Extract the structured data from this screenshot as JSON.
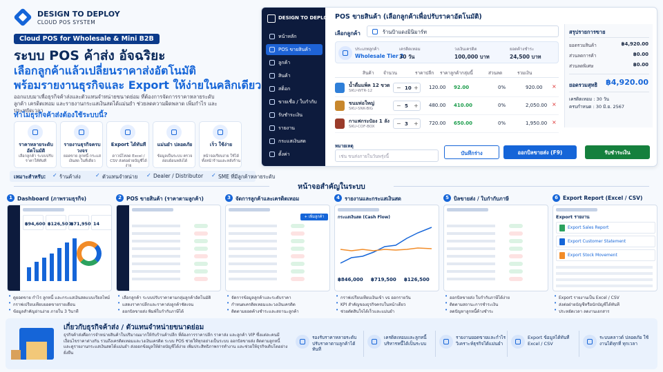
{
  "brand": {
    "name": "DESIGN TO DEPLOY",
    "tagline": "CLOUD POS SYSTEM"
  },
  "hero": {
    "badge": "Cloud POS for Wholesale & Mini B2B",
    "title_1": "ระบบ POS ค้าส่ง อัจฉริยะ",
    "title_2": "เลือกลูกค้าแล้วเปลี่ยนราคาส่งอัตโนมัติ",
    "title_3": "พร้อมรายงานธุรกิจและ Export ให้ง่ายในคลิกเดียว",
    "description": "ออกแบบมาเพื่อธุรกิจค้าส่งและตัวแทนจำหน่ายขนาดย่อม ที่ต้องการจัดการราคาหลายระดับ ลูกค้า เครดิตเทอม และรายงานกระแสเงินสดได้แม่นยำ ช่วยลดความผิดพลาด เพิ่มกำไร และประหยัดเวลา"
  },
  "why": {
    "heading": "ทำไมธุรกิจค้าส่งต้องใช้ระบบนี้?",
    "cards": [
      {
        "title": "ราคาหลายระดับ อัตโนมัติ",
        "text": "เลือกลูกค้า ระบบปรับราคาให้ทันที"
      },
      {
        "title": "รายงานธุรกิจครบวงจร",
        "text": "ยอดขาย ลูกหนี้ กระแสเงินสด ในที่เดียว"
      },
      {
        "title": "Export ได้ทันที",
        "text": "ดาวน์โหลด Excel / CSV ส่งต่อฝ่ายบัญชีได้ง่าย"
      },
      {
        "title": "แม่นยำ ปลอดภัย",
        "text": "ข้อมูลเป็นระบบ ตรวจสอบย้อนหลังได้"
      },
      {
        "title": "เร็ว ใช้ง่าย",
        "text": "หน้าจอเรียบง่าย ใช้ได้ทั้งหน้าร้านและหลังร้าน"
      }
    ]
  },
  "suitable": {
    "label": "เหมาะสำหรับ:",
    "items": [
      "ร้านค้าส่ง",
      "ตัวแทนจำหน่าย",
      "Dealer / Distributor",
      "SME ที่มีลูกค้าหลายระดับ"
    ]
  },
  "pos": {
    "menu": [
      "หน้าหลัก",
      "POS ขายสินค้า",
      "ลูกค้า",
      "สินค้า",
      "สต็อก",
      "ขายเชื่อ / ใบกำกับ",
      "รับชำระเงิน",
      "รายงาน",
      "กระแสเงินสด",
      "ตั้งค่า"
    ],
    "title": "POS ขายสินค้า (เลือกลูกค้าเพื่อปรับราคาอัตโนมัติ)",
    "customer_label": "เลือกลูกค้า",
    "customer": "ร้านป้าแดงมินิมาร์ท",
    "info": [
      {
        "label": "ประเภทลูกค้า",
        "value": "Wholesale Tier 2"
      },
      {
        "label": "เครดิตเทอม",
        "value": "30 วัน"
      },
      {
        "label": "วงเงินเครดิต",
        "value": "100,000 บาท"
      },
      {
        "label": "ยอดค้างชำระ",
        "value": "24,500 บาท"
      }
    ],
    "table": {
      "headers": [
        "สินค้า",
        "จำนวน",
        "ราคาปลีก",
        "ราคาลูกค้ากลุ่มนี้",
        "ส่วนลด",
        "รวมเงิน"
      ],
      "rows": [
        {
          "name": "น้ำดื่มแพ็ค 12 ขวด",
          "sku": "SKU-WTR-12",
          "qty": "10",
          "retail": "120.00",
          "price": "92.00",
          "discount": "0%",
          "total": "920.00"
        },
        {
          "name": "ขนมห่อใหญ่",
          "sku": "SKU-SNK-BIG",
          "qty": "5",
          "retail": "480.00",
          "price": "410.00",
          "discount": "0%",
          "total": "2,050.00"
        },
        {
          "name": "กาแฟกระป๋อง 1 ลัง",
          "sku": "SKU-COF-BOX",
          "qty": "3",
          "retail": "720.00",
          "price": "650.00",
          "discount": "0%",
          "total": "1,950.00"
        }
      ]
    },
    "note_label": "หมายเหตุ",
    "note_placeholder": "เช่น ขนส่งภายในวันพรุ่งนี้",
    "buttons": {
      "draft": "บันทึกร่าง",
      "issue": "ออกบิลขายส่ง (F9)",
      "pay": "รับชำระเงิน"
    },
    "summary": {
      "title": "สรุปรายการขาย",
      "lines": [
        {
          "label": "ยอดรวมสินค้า",
          "value": "฿4,920.00"
        },
        {
          "label": "ส่วนลดการค้า",
          "value": "฿0.00"
        },
        {
          "label": "ส่วนลดพิเศษ",
          "value": "฿0.00"
        }
      ],
      "total_label": "ยอดรวมสุทธิ",
      "total": "฿4,920.00",
      "credit": "เครดิตเทอม : 30 วัน",
      "due": "ครบกำหนด : 30 มิ.ย. 2567"
    }
  },
  "screens": {
    "heading": "หน้าจอสำคัญในระบบ",
    "items": [
      {
        "number": "1",
        "title": "Dashboard (ภาพรวมธุรกิจ)",
        "bullets": [
          "ดูยอดขาย กำไร ลูกหนี้ และกระแสเงินสดแบบเรียลไทม์",
          "กราฟเปรียบเทียบยอดขายรายเดือน",
          "ข้อมูลสำคัญอ่านง่าย ภายใน 3 วินาที"
        ]
      },
      {
        "number": "2",
        "title": "POS ขายสินค้า (ราคาตามลูกค้า)",
        "bullets": [
          "เลือกลูกค้า ระบบปรับราคาตามกลุ่มลูกค้าอัตโนมัติ",
          "แสดงราคาปลีกและราคาส่งลูกค้าชัดเจน",
          "ออกบิลขายส่ง พิมพ์ใบกำกับภาษีได้"
        ]
      },
      {
        "number": "3",
        "title": "จัดการลูกค้าและเครดิตเทอม",
        "bullets": [
          "จัดการข้อมูลลูกค้าและระดับราคา",
          "กำหนดเครดิตเทอมและวงเงินเครดิต",
          "ติดตามยอดค้างชำระและสถานะลูกค้า"
        ]
      },
      {
        "number": "4",
        "title": "รายงานและกระแสเงินสด",
        "bullets": [
          "กราฟเปรียบเทียบเงินเข้า vs ออกรายวัน",
          "KPI สำคัญของธุรกิจครบในหน้าเดียว",
          "ช่วยตัดสินใจได้เร็วและแม่นยำ"
        ]
      },
      {
        "number": "5",
        "title": "บิลขายส่ง / ใบกำกับภาษี",
        "bullets": [
          "ออกบิลขายส่ง ใบกำกับภาษีได้ง่าย",
          "ติดตามสถานะการชำระเงิน",
          "ลดปัญหาลูกหนี้ค้างชำระ"
        ]
      },
      {
        "number": "6",
        "title": "Export Report (Excel / CSV)",
        "bullets": [
          "Export รายงานเป็น Excel / CSV",
          "ส่งต่อฝ่ายบัญชีหรือนักบัญชีได้ทันที",
          "ประหยัดเวลา ลดงานเอกสาร"
        ]
      }
    ],
    "dashboard_kpis": [
      "฿94,600",
      "฿126,500",
      "฿71,950",
      "14"
    ],
    "customer_button": "+ เพิ่มลูกค้า",
    "cashflow_title": "กระแสเงินสด (Cash Flow)",
    "cashflow_kpis": [
      "฿846,000",
      "฿719,500",
      "฿126,500"
    ],
    "export_title": "Export รายงาน",
    "export_items": [
      "Export Sales Report",
      "Export Customer Statement",
      "Export Stock Movement"
    ]
  },
  "footer": {
    "title": "เกี่ยวกับธุรกิจค้าส่ง / ตัวแทนจำหน่ายขนาดย่อม",
    "description": "ธุรกิจค้าส่งคือการจำหน่ายสินค้าในปริมาณมากให้กับร้านค้าปลีก ที่ต้องการราคาปลีก ราคาส่ง และลูกค้า VIP ซึ่งแต่ละคนมีเงื่อนไขราคาต่างกัน รวมถึงเครดิตเทอมและวงเงินเครดิต ระบบ POS ช่วยให้ทุกอย่างเป็นระบบ ออกบิลขายส่ง ติดตามลูกหนี้ และดูรายงานกระแสเงินสดได้แม่นยำ ส่งออกข้อมูลให้ฝ่ายบัญชีได้ง่าย เพิ่มประสิทธิภาพการทำงาน และช่วยให้ธุรกิจเติบโตอย่างยั่งยืน",
    "features": [
      "รองรับราคาหลายระดับ ปรับราคาตามลูกค้าได้ทันที",
      "เครดิตเทอมและลูกหนี้ บริหารหนี้ได้เป็นระบบ",
      "รายงานยอดขายและกำไร วิเคราะห์ธุรกิจได้แม่นยำ",
      "Export ข้อมูลได้ทันที Excel / CSV",
      "ระบบคลาวด์ ปลอดภัย ใช้งานได้ทุกที่ ทุกเวลา"
    ]
  }
}
